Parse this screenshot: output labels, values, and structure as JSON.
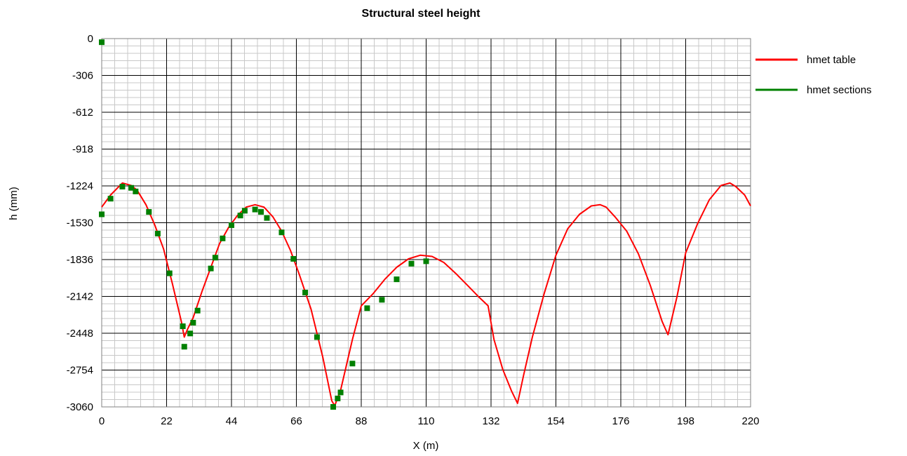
{
  "chart_data": {
    "type": "line",
    "title": "Structural steel height",
    "xlabel": "X (m)",
    "ylabel": "h (mm)",
    "xlim": [
      0,
      220
    ],
    "ylim": [
      -3060,
      0
    ],
    "x_ticks": [
      0,
      22,
      44,
      66,
      88,
      110,
      132,
      154,
      176,
      198,
      220
    ],
    "y_ticks": [
      0,
      -306,
      -612,
      -918,
      -1224,
      -1530,
      -1836,
      -2142,
      -2448,
      -2754,
      -3060
    ],
    "x_minor_divisions": 5,
    "y_minor_divisions": 5,
    "grid": true,
    "legend_position": "top-right outside",
    "series": [
      {
        "name": "hmet table",
        "style": "line",
        "color": "#ff0000",
        "points": [
          [
            0,
            -1400
          ],
          [
            3,
            -1300
          ],
          [
            7,
            -1200
          ],
          [
            10,
            -1220
          ],
          [
            12,
            -1260
          ],
          [
            15,
            -1380
          ],
          [
            18,
            -1550
          ],
          [
            21,
            -1750
          ],
          [
            24,
            -2040
          ],
          [
            27,
            -2350
          ],
          [
            28,
            -2480
          ],
          [
            29,
            -2420
          ],
          [
            31,
            -2320
          ],
          [
            34,
            -2100
          ],
          [
            37,
            -1900
          ],
          [
            40,
            -1700
          ],
          [
            43,
            -1570
          ],
          [
            46,
            -1470
          ],
          [
            49,
            -1400
          ],
          [
            52,
            -1380
          ],
          [
            55,
            -1400
          ],
          [
            58,
            -1480
          ],
          [
            61,
            -1600
          ],
          [
            64,
            -1760
          ],
          [
            67,
            -1960
          ],
          [
            71,
            -2250
          ],
          [
            75,
            -2650
          ],
          [
            78,
            -3010
          ],
          [
            79,
            -3050
          ],
          [
            81,
            -2920
          ],
          [
            85,
            -2500
          ],
          [
            88,
            -2220
          ],
          [
            92,
            -2120
          ],
          [
            96,
            -2000
          ],
          [
            100,
            -1900
          ],
          [
            104,
            -1830
          ],
          [
            108,
            -1800
          ],
          [
            112,
            -1810
          ],
          [
            116,
            -1860
          ],
          [
            120,
            -1950
          ],
          [
            124,
            -2050
          ],
          [
            128,
            -2150
          ],
          [
            131,
            -2220
          ],
          [
            133,
            -2500
          ],
          [
            136,
            -2750
          ],
          [
            139,
            -2930
          ],
          [
            141,
            -3030
          ],
          [
            143,
            -2800
          ],
          [
            146,
            -2480
          ],
          [
            150,
            -2120
          ],
          [
            154,
            -1800
          ],
          [
            158,
            -1580
          ],
          [
            162,
            -1460
          ],
          [
            166,
            -1390
          ],
          [
            169,
            -1380
          ],
          [
            171,
            -1400
          ],
          [
            174,
            -1480
          ],
          [
            178,
            -1600
          ],
          [
            182,
            -1790
          ],
          [
            186,
            -2050
          ],
          [
            190,
            -2350
          ],
          [
            192,
            -2460
          ],
          [
            195,
            -2150
          ],
          [
            198,
            -1780
          ],
          [
            202,
            -1540
          ],
          [
            206,
            -1340
          ],
          [
            210,
            -1220
          ],
          [
            213,
            -1200
          ],
          [
            215,
            -1230
          ],
          [
            218,
            -1300
          ],
          [
            220,
            -1390
          ]
        ]
      },
      {
        "name": "hmet sections",
        "style": "markers",
        "color": "#008000",
        "points": [
          [
            0,
            -30
          ],
          [
            0,
            -1460
          ],
          [
            3,
            -1330
          ],
          [
            7,
            -1230
          ],
          [
            10,
            -1240
          ],
          [
            11.5,
            -1270
          ],
          [
            16,
            -1440
          ],
          [
            19,
            -1620
          ],
          [
            23,
            -1950
          ],
          [
            27.5,
            -2390
          ],
          [
            28,
            -2560
          ],
          [
            30,
            -2450
          ],
          [
            31,
            -2360
          ],
          [
            32.5,
            -2260
          ],
          [
            37,
            -1910
          ],
          [
            38.5,
            -1820
          ],
          [
            41,
            -1660
          ],
          [
            44,
            -1550
          ],
          [
            47,
            -1470
          ],
          [
            48.5,
            -1430
          ],
          [
            52,
            -1420
          ],
          [
            54,
            -1440
          ],
          [
            56,
            -1490
          ],
          [
            61,
            -1610
          ],
          [
            65,
            -1830
          ],
          [
            69,
            -2110
          ],
          [
            73,
            -2480
          ],
          [
            78.5,
            -3060
          ],
          [
            80,
            -2990
          ],
          [
            81,
            -2940
          ],
          [
            85,
            -2700
          ],
          [
            90,
            -2240
          ],
          [
            95,
            -2170
          ],
          [
            100,
            -2000
          ],
          [
            105,
            -1870
          ],
          [
            110,
            -1850
          ]
        ]
      }
    ]
  }
}
